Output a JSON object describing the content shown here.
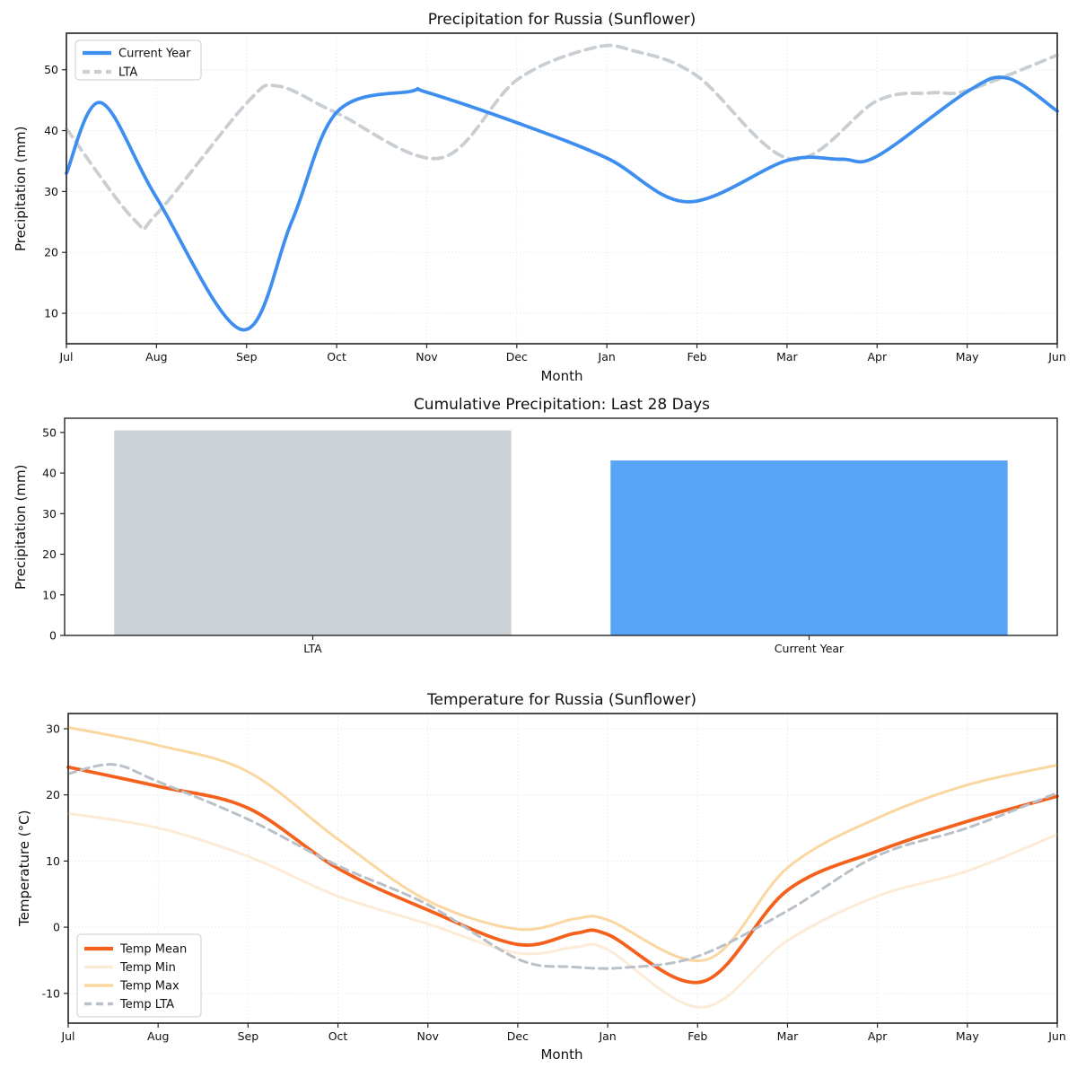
{
  "figure": {
    "background": "#ffffff",
    "text_color": "#111111",
    "grid_color": "#e4e4e4",
    "spine_color": "#262626"
  },
  "chart_data": [
    {
      "type": "line",
      "title": "Precipitation for Russia (Sunflower)",
      "xlabel": "Month",
      "ylabel": "Precipitation (mm)",
      "x_tick_labels": [
        "Jul",
        "Aug",
        "Sep",
        "Oct",
        "Nov",
        "Dec",
        "Jan",
        "Feb",
        "Mar",
        "Apr",
        "May",
        "Jun"
      ],
      "yticks": [
        10,
        20,
        30,
        40,
        50
      ],
      "ylim": [
        5,
        56
      ],
      "grid": true,
      "legend_position": "upper-left",
      "series": [
        {
          "name": "LTA",
          "color": "#c9ced3",
          "width": 3.8,
          "dash": [
            11,
            7
          ],
          "points": [
            [
              0,
              40.3
            ],
            [
              0.75,
              25.4
            ],
            [
              1,
              26.3
            ],
            [
              2,
              44.5
            ],
            [
              2.35,
              47.3
            ],
            [
              3,
              42.9
            ],
            [
              4.15,
              35.5
            ],
            [
              5,
              48.3
            ],
            [
              5.85,
              53.6
            ],
            [
              6.3,
              53.1
            ],
            [
              7,
              49
            ],
            [
              8.05,
              35.3
            ],
            [
              9,
              44.9
            ],
            [
              9.6,
              46.2
            ],
            [
              10,
              46.6
            ],
            [
              11,
              52.4
            ]
          ]
        },
        {
          "name": "Current Year",
          "color": "#3d8eef",
          "width": 3.8,
          "dash": null,
          "points": [
            [
              0,
              33
            ],
            [
              0.38,
              44.6
            ],
            [
              1,
              29
            ],
            [
              1.95,
              7.3
            ],
            [
              2.5,
              25
            ],
            [
              3,
              43
            ],
            [
              3.82,
              46.45
            ],
            [
              4,
              46.3
            ],
            [
              5,
              41.3
            ],
            [
              6,
              35.5
            ],
            [
              6.9,
              28.3
            ],
            [
              8,
              35.1
            ],
            [
              8.6,
              35.3
            ],
            [
              9,
              35.8
            ],
            [
              10,
              46.4
            ],
            [
              10.45,
              48.6
            ],
            [
              11,
              43.2
            ]
          ]
        }
      ],
      "legend_order": [
        "Current Year",
        "LTA"
      ]
    },
    {
      "type": "bar",
      "title": "Cumulative Precipitation: Last 28 Days",
      "ylabel": "Precipitation (mm)",
      "categories": [
        "LTA",
        "Current Year"
      ],
      "values": [
        50.5,
        43.1
      ],
      "colors": [
        "#ccd1d5",
        "#58a4f6"
      ],
      "yticks": [
        0,
        10,
        20,
        30,
        40,
        50
      ],
      "ylim": [
        0,
        53.5
      ],
      "grid": false
    },
    {
      "type": "line",
      "title": "Temperature for Russia (Sunflower)",
      "xlabel": "Month",
      "ylabel": "Temperature (°C)",
      "x_tick_labels": [
        "Jul",
        "Aug",
        "Sep",
        "Oct",
        "Nov",
        "Dec",
        "Jan",
        "Feb",
        "Mar",
        "Apr",
        "May",
        "Jun"
      ],
      "yticks": [
        -10,
        0,
        10,
        20,
        30
      ],
      "ylim": [
        -14.5,
        32.3
      ],
      "grid": true,
      "legend_position": "lower-left",
      "series": [
        {
          "name": "Temp Mean",
          "color": "#f4611d",
          "width": 3.8,
          "dash": null,
          "points": [
            [
              0,
              24.2
            ],
            [
              1,
              21.3
            ],
            [
              2,
              18
            ],
            [
              3,
              8.9
            ],
            [
              4,
              2.6
            ],
            [
              5,
              -2.6
            ],
            [
              5.65,
              -0.9
            ],
            [
              6,
              -1.1
            ],
            [
              7.05,
              -8.25
            ],
            [
              8,
              5.6
            ],
            [
              9,
              11.5
            ],
            [
              10,
              16
            ],
            [
              11,
              19.8
            ]
          ]
        },
        {
          "name": "Temp Min",
          "color": "#fcebd7",
          "width": 3,
          "dash": null,
          "points": [
            [
              0,
              17.2
            ],
            [
              1,
              15
            ],
            [
              2,
              10.7
            ],
            [
              3,
              4.7
            ],
            [
              4,
              0.5
            ],
            [
              5,
              -3.9
            ],
            [
              5.65,
              -3.0
            ],
            [
              6,
              -3.4
            ],
            [
              7.05,
              -12.1
            ],
            [
              8,
              -2
            ],
            [
              9,
              4.7
            ],
            [
              10,
              8.5
            ],
            [
              11,
              14
            ]
          ]
        },
        {
          "name": "Temp Max",
          "color": "#fad7a1",
          "width": 3,
          "dash": null,
          "points": [
            [
              0,
              30.2
            ],
            [
              1,
              27.5
            ],
            [
              2,
              23.5
            ],
            [
              3,
              13.3
            ],
            [
              4,
              4
            ],
            [
              5,
              -0.3
            ],
            [
              5.65,
              1.3
            ],
            [
              6,
              1.1
            ],
            [
              7.1,
              -4.9
            ],
            [
              8,
              9
            ],
            [
              9,
              16.5
            ],
            [
              10,
              21.5
            ],
            [
              11,
              24.5
            ]
          ]
        },
        {
          "name": "Temp LTA",
          "color": "#b9c0c7",
          "width": 3,
          "dash": [
            9,
            6
          ],
          "points": [
            [
              0,
              23.2
            ],
            [
              0.5,
              24.6
            ],
            [
              1,
              22
            ],
            [
              2,
              16.3
            ],
            [
              3,
              9.3
            ],
            [
              4,
              3.4
            ],
            [
              5,
              -4.8
            ],
            [
              5.6,
              -6.0
            ],
            [
              6.2,
              -6.1
            ],
            [
              7,
              -4.4
            ],
            [
              8,
              2.5
            ],
            [
              9,
              10.8
            ],
            [
              10,
              15
            ],
            [
              11,
              20.3
            ]
          ]
        }
      ],
      "legend_order": [
        "Temp Mean",
        "Temp Min",
        "Temp Max",
        "Temp LTA"
      ]
    }
  ]
}
